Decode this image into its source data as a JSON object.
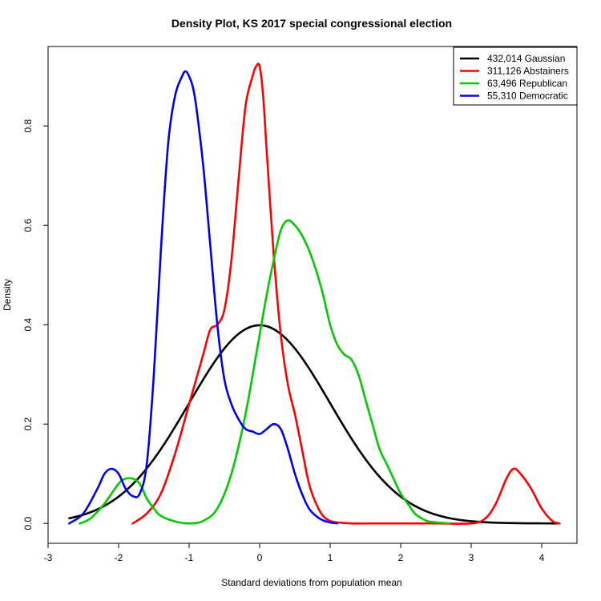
{
  "chart_data": {
    "type": "line",
    "title": "Density Plot, KS 2017 special congressional election",
    "xlabel": "Standard deviations from population mean",
    "ylabel": "Density",
    "xlim": [
      -3,
      4.5
    ],
    "ylim": [
      -0.04,
      0.96
    ],
    "xticks": [
      -3,
      -2,
      -1,
      0,
      1,
      2,
      3,
      4
    ],
    "yticks": [
      0.0,
      0.2,
      0.4,
      0.6,
      0.8
    ],
    "xtick_labels": [
      "-3",
      "-2",
      "-1",
      "0",
      "1",
      "2",
      "3",
      "4"
    ],
    "ytick_labels": [
      "0.0",
      "0.2",
      "0.4",
      "0.6",
      "0.8"
    ],
    "legend_position": "top-right",
    "grid": false,
    "series": [
      {
        "name": "432,014 Gaussian",
        "color": "#000000",
        "points": "gaussian",
        "x": [
          -2.7,
          4.25
        ]
      },
      {
        "name": "311,126 Abstainers",
        "color": "#ff0000",
        "x": [
          -1.8,
          -1.6,
          -1.4,
          -1.2,
          -1.0,
          -0.8,
          -0.7,
          -0.6,
          -0.5,
          -0.4,
          -0.3,
          -0.2,
          -0.1,
          -0.05,
          0.0,
          0.05,
          0.1,
          0.2,
          0.3,
          0.4,
          0.5,
          0.6,
          0.7,
          0.8,
          0.9,
          1.0,
          1.1,
          1.3,
          1.6,
          2.0,
          2.5,
          3.0,
          3.2,
          3.35,
          3.5,
          3.6,
          3.7,
          3.85,
          4.0,
          4.15,
          4.25
        ],
        "y": [
          0.0,
          0.02,
          0.06,
          0.14,
          0.24,
          0.34,
          0.39,
          0.4,
          0.43,
          0.53,
          0.69,
          0.84,
          0.9,
          0.92,
          0.92,
          0.86,
          0.75,
          0.54,
          0.38,
          0.28,
          0.22,
          0.15,
          0.08,
          0.04,
          0.015,
          0.005,
          0.002,
          0.0,
          0.0,
          0.0,
          0.0,
          0.0,
          0.01,
          0.04,
          0.09,
          0.11,
          0.1,
          0.07,
          0.03,
          0.005,
          0.0
        ]
      },
      {
        "name": "63,496 Republican",
        "color": "#00cc00",
        "x": [
          -2.55,
          -2.4,
          -2.2,
          -2.0,
          -1.9,
          -1.8,
          -1.7,
          -1.6,
          -1.5,
          -1.4,
          -1.2,
          -1.0,
          -0.8,
          -0.6,
          -0.4,
          -0.2,
          0.0,
          0.1,
          0.2,
          0.3,
          0.4,
          0.5,
          0.6,
          0.7,
          0.8,
          0.9,
          1.0,
          1.1,
          1.2,
          1.3,
          1.4,
          1.5,
          1.6,
          1.7,
          1.8,
          1.9,
          2.0,
          2.1,
          2.2,
          2.3,
          2.4,
          2.6,
          2.7
        ],
        "y": [
          0.0,
          0.01,
          0.04,
          0.08,
          0.09,
          0.09,
          0.08,
          0.05,
          0.03,
          0.015,
          0.004,
          0.0,
          0.005,
          0.03,
          0.1,
          0.22,
          0.38,
          0.46,
          0.53,
          0.59,
          0.61,
          0.6,
          0.58,
          0.55,
          0.51,
          0.46,
          0.4,
          0.36,
          0.34,
          0.33,
          0.3,
          0.25,
          0.2,
          0.15,
          0.12,
          0.09,
          0.06,
          0.04,
          0.02,
          0.01,
          0.004,
          0.001,
          0.0
        ]
      },
      {
        "name": "55,310 Democratic",
        "color": "#0000ee",
        "x": [
          -2.7,
          -2.5,
          -2.3,
          -2.2,
          -2.1,
          -2.0,
          -1.9,
          -1.8,
          -1.7,
          -1.6,
          -1.5,
          -1.4,
          -1.3,
          -1.2,
          -1.1,
          -1.05,
          -1.0,
          -0.95,
          -0.9,
          -0.8,
          -0.7,
          -0.6,
          -0.5,
          -0.4,
          -0.3,
          -0.2,
          -0.1,
          0.0,
          0.1,
          0.2,
          0.3,
          0.4,
          0.5,
          0.6,
          0.7,
          0.8,
          0.9,
          1.0,
          1.1
        ],
        "y": [
          0.0,
          0.02,
          0.07,
          0.1,
          0.11,
          0.1,
          0.07,
          0.055,
          0.06,
          0.12,
          0.3,
          0.55,
          0.76,
          0.86,
          0.9,
          0.91,
          0.9,
          0.88,
          0.84,
          0.72,
          0.56,
          0.4,
          0.29,
          0.24,
          0.21,
          0.19,
          0.185,
          0.18,
          0.19,
          0.2,
          0.19,
          0.15,
          0.1,
          0.06,
          0.03,
          0.015,
          0.006,
          0.002,
          0.0
        ]
      }
    ]
  }
}
